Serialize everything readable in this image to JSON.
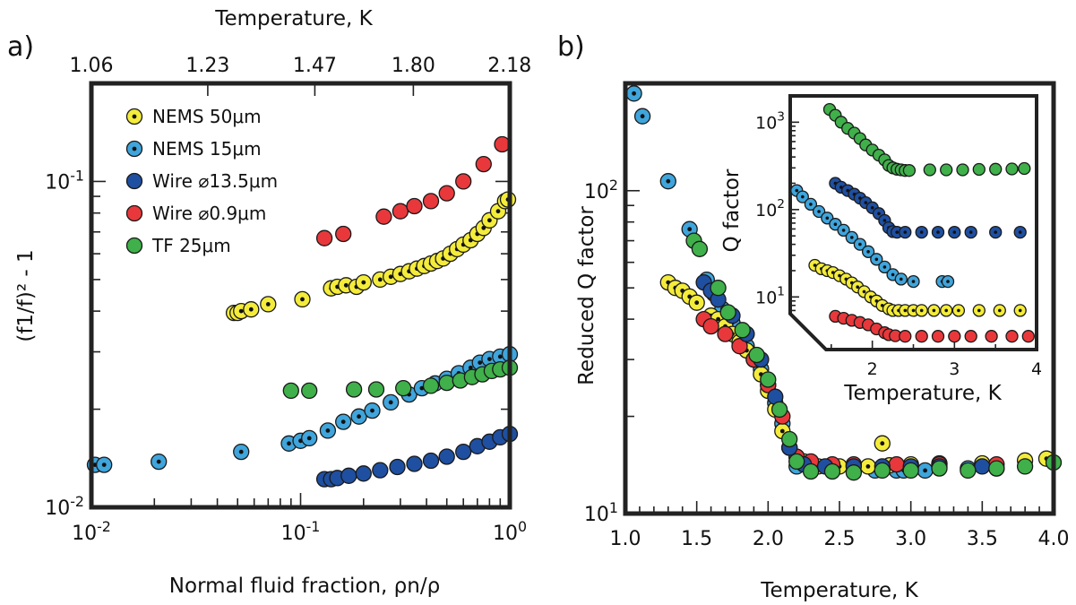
{
  "colors": {
    "nems50": "#f4ec3a",
    "nems15": "#3fa5dc",
    "wire13": "#1f4fa0",
    "wire09": "#e8383b",
    "tf25": "#3fb04a"
  },
  "chart_data": [
    {
      "type": "scatter",
      "panel_label": "a)",
      "xlabel": "Normal fluid fraction, ρn/ρ",
      "ylabel": "(f1/f)² - 1",
      "xscale": "log",
      "yscale": "log",
      "xlim": [
        0.01,
        1.0
      ],
      "ylim": [
        0.01,
        0.2
      ],
      "x_ticks": [
        {
          "v": 0.01,
          "base": "10",
          "exp": "-2"
        },
        {
          "v": 0.1,
          "base": "10",
          "exp": "-1"
        },
        {
          "v": 1,
          "base": "10",
          "exp": "0"
        }
      ],
      "y_ticks": [
        {
          "v": 0.01,
          "base": "10",
          "exp": "-2"
        },
        {
          "v": 0.1,
          "base": "10",
          "exp": "-1"
        }
      ],
      "top_axis": {
        "label": "Temperature, K",
        "ticks": [
          {
            "x": 0.01,
            "label": "1.06"
          },
          {
            "x": 0.036,
            "label": "1.23"
          },
          {
            "x": 0.117,
            "label": "1.47"
          },
          {
            "x": 0.346,
            "label": "1.80"
          },
          {
            "x": 0.997,
            "label": "2.18"
          }
        ]
      },
      "legend_position": "top-left",
      "series": [
        {
          "name": "NEMS 50μm",
          "color_key": "nems50",
          "dotted": true,
          "x": [
            0.048,
            0.05,
            0.052,
            0.058,
            0.07,
            0.102,
            0.14,
            0.15,
            0.165,
            0.185,
            0.2,
            0.24,
            0.27,
            0.3,
            0.33,
            0.36,
            0.39,
            0.42,
            0.45,
            0.48,
            0.52,
            0.56,
            0.6,
            0.65,
            0.7,
            0.75,
            0.8,
            0.88,
            0.95,
            0.98
          ],
          "y": [
            0.0395,
            0.0395,
            0.04,
            0.0405,
            0.042,
            0.0435,
            0.047,
            0.0475,
            0.048,
            0.0475,
            0.049,
            0.05,
            0.051,
            0.052,
            0.053,
            0.054,
            0.055,
            0.056,
            0.057,
            0.058,
            0.06,
            0.062,
            0.064,
            0.066,
            0.069,
            0.072,
            0.076,
            0.081,
            0.087,
            0.088
          ]
        },
        {
          "name": "NEMS 15μm",
          "color_key": "nems15",
          "dotted": true,
          "x": [
            0.0104,
            0.0115,
            0.021,
            0.052,
            0.088,
            0.1,
            0.11,
            0.135,
            0.16,
            0.19,
            0.22,
            0.27,
            0.33,
            0.38,
            0.44,
            0.5,
            0.57,
            0.65,
            0.72,
            0.8,
            0.9,
            1.0
          ],
          "y": [
            0.0135,
            0.0135,
            0.0138,
            0.0148,
            0.0157,
            0.016,
            0.0163,
            0.0172,
            0.0183,
            0.019,
            0.0198,
            0.021,
            0.0222,
            0.0232,
            0.024,
            0.0248,
            0.0258,
            0.0268,
            0.0278,
            0.0285,
            0.029,
            0.0295
          ]
        },
        {
          "name": "Wire ⌀13.5μm",
          "color_key": "wire13",
          "dotted": false,
          "x": [
            0.13,
            0.14,
            0.15,
            0.17,
            0.2,
            0.24,
            0.29,
            0.35,
            0.42,
            0.5,
            0.6,
            0.7,
            0.8,
            0.9,
            1.0
          ],
          "y": [
            0.0122,
            0.0122,
            0.0123,
            0.0125,
            0.0127,
            0.013,
            0.0133,
            0.0136,
            0.0139,
            0.0143,
            0.0148,
            0.0154,
            0.0159,
            0.0164,
            0.0168
          ]
        },
        {
          "name": "Wire ⌀0.9μm",
          "color_key": "wire09",
          "dotted": false,
          "x": [
            0.13,
            0.16,
            0.25,
            0.3,
            0.35,
            0.42,
            0.5,
            0.6,
            0.75,
            0.92
          ],
          "y": [
            0.067,
            0.069,
            0.078,
            0.081,
            0.084,
            0.087,
            0.092,
            0.1,
            0.113,
            0.13
          ]
        },
        {
          "name": "TF 25μm",
          "color_key": "tf25",
          "dotted": false,
          "x": [
            0.09,
            0.11,
            0.18,
            0.23,
            0.31,
            0.42,
            0.5,
            0.58,
            0.66,
            0.74,
            0.82,
            0.9,
            1.0
          ],
          "y": [
            0.0228,
            0.0228,
            0.023,
            0.023,
            0.0232,
            0.0236,
            0.0241,
            0.0245,
            0.0251,
            0.0256,
            0.0262,
            0.0265,
            0.0268
          ]
        }
      ]
    },
    {
      "type": "scatter",
      "panel_label": "b)",
      "xlabel": "Temperature, K",
      "ylabel": "Reduced Q factor",
      "xscale": "linear",
      "yscale": "log",
      "xlim": [
        1.0,
        4.0
      ],
      "ylim": [
        10,
        215
      ],
      "x_ticks": [
        {
          "v": 1.0,
          "label": "1.0"
        },
        {
          "v": 1.5,
          "label": "1.5"
        },
        {
          "v": 2.0,
          "label": "2.0"
        },
        {
          "v": 2.5,
          "label": "2.5"
        },
        {
          "v": 3.0,
          "label": "3.0"
        },
        {
          "v": 3.5,
          "label": "3.5"
        },
        {
          "v": 4.0,
          "label": "4.0"
        }
      ],
      "y_ticks": [
        {
          "v": 10,
          "base": "10",
          "exp": "1"
        },
        {
          "v": 100,
          "base": "10",
          "exp": "2"
        }
      ],
      "series": [
        {
          "series_key": "nems15",
          "color_key": "nems15",
          "dotted": true,
          "x": [
            1.06,
            1.12,
            1.3,
            1.45,
            1.57,
            1.62,
            1.68,
            1.75,
            1.8,
            1.85,
            1.9,
            1.95,
            2.0,
            2.05,
            2.1,
            2.15,
            2.2,
            2.3,
            2.45,
            2.6,
            2.75,
            2.9,
            2.95,
            3.1,
            3.4,
            3.6
          ],
          "y": [
            200,
            170,
            107,
            76,
            53,
            48,
            43,
            39,
            36,
            33,
            31,
            28,
            25,
            22,
            19,
            16,
            14,
            13.8,
            13.6,
            13.6,
            13.6,
            13.6,
            13.6,
            13.6,
            13.8,
            13.8
          ]
        },
        {
          "series_key": "nems50",
          "color_key": "nems50",
          "dotted": true,
          "x": [
            1.3,
            1.35,
            1.4,
            1.45,
            1.5,
            1.6,
            1.65,
            1.7,
            1.75,
            1.8,
            1.85,
            1.9,
            1.95,
            2.0,
            2.05,
            2.1,
            2.15,
            2.2,
            2.25,
            2.35,
            2.5,
            2.6,
            2.7,
            2.8,
            2.85,
            3.0,
            3.2,
            3.5,
            3.8,
            3.95
          ],
          "y": [
            52,
            50,
            49,
            47,
            45,
            41,
            40,
            38,
            36,
            34,
            32,
            30,
            27,
            24,
            21,
            18,
            16,
            15,
            14.5,
            14,
            14,
            14,
            14,
            16.5,
            14.1,
            14.2,
            14.3,
            14.3,
            14.6,
            14.8
          ]
        },
        {
          "series_key": "wire09",
          "color_key": "wire09",
          "dotted": false,
          "x": [
            1.55,
            1.6,
            1.7,
            1.8,
            1.9,
            2.0,
            2.1,
            2.2,
            2.3,
            2.45,
            2.6,
            2.9,
            3.2,
            3.6
          ],
          "y": [
            40,
            38,
            36,
            33,
            30,
            25,
            20,
            15,
            14.5,
            14.2,
            14.2,
            14.2,
            14.2,
            14.2
          ]
        },
        {
          "series_key": "wire13",
          "color_key": "wire13",
          "dotted": false,
          "x": [
            1.55,
            1.6,
            1.65,
            1.75,
            1.85,
            1.95,
            2.05,
            2.15,
            2.25,
            2.4,
            2.6,
            2.8,
            3.0,
            3.2,
            3.5
          ],
          "y": [
            52,
            49,
            46,
            41,
            36,
            30,
            23,
            16,
            14.2,
            14,
            14,
            14,
            14,
            14,
            14
          ]
        },
        {
          "series_key": "tf25",
          "color_key": "tf25",
          "dotted": false,
          "x": [
            1.48,
            1.52,
            1.65,
            1.72,
            1.82,
            1.92,
            2.0,
            2.08,
            2.15,
            2.2,
            2.3,
            2.45,
            2.6,
            2.8,
            3.0,
            3.2,
            3.4,
            3.6,
            3.8,
            4.0
          ],
          "y": [
            70,
            66,
            50,
            42,
            37,
            31,
            26,
            21,
            17,
            14.5,
            13.5,
            13.5,
            13.4,
            13.6,
            13.6,
            13.8,
            13.6,
            13.8,
            14,
            14.4
          ]
        }
      ],
      "inset": {
        "type": "scatter",
        "xlabel": "Temperature, K",
        "ylabel": "Q factor",
        "xscale": "linear",
        "yscale": "log",
        "xlim": [
          1.0,
          4.0
        ],
        "ylim": [
          2.5,
          2000
        ],
        "x_ticks": [
          {
            "v": 2,
            "label": "2"
          },
          {
            "v": 3,
            "label": "3"
          },
          {
            "v": 4,
            "label": "4"
          }
        ],
        "y_ticks": [
          {
            "v": 10,
            "base": "10",
            "exp": "1"
          },
          {
            "v": 100,
            "base": "10",
            "exp": "2"
          },
          {
            "v": 1000,
            "base": "10",
            "exp": "3"
          }
        ],
        "series": [
          {
            "series_key": "tf25",
            "color_key": "tf25",
            "dotted": false,
            "x": [
              1.48,
              1.55,
              1.62,
              1.7,
              1.78,
              1.85,
              1.92,
              2.0,
              2.08,
              2.15,
              2.2,
              2.25,
              2.3,
              2.35,
              2.4,
              2.45,
              2.7,
              2.9,
              3.1,
              3.3,
              3.5,
              3.7,
              3.85
            ],
            "y": [
              1400,
              1200,
              1000,
              850,
              750,
              650,
              550,
              480,
              420,
              370,
              320,
              300,
              290,
              285,
              280,
              280,
              285,
              285,
              285,
              288,
              290,
              292,
              295
            ]
          },
          {
            "series_key": "wire13",
            "color_key": "wire13",
            "dotted": true,
            "x": [
              1.55,
              1.62,
              1.7,
              1.78,
              1.85,
              1.92,
              2.0,
              2.08,
              2.15,
              2.2,
              2.25,
              2.3,
              2.4,
              2.6,
              2.8,
              3.0,
              3.2,
              3.5,
              3.8
            ],
            "y": [
              200,
              180,
              165,
              150,
              135,
              120,
              105,
              90,
              75,
              62,
              56,
              55,
              55,
              55,
              55,
              55,
              55,
              55,
              55
            ]
          },
          {
            "series_key": "nems15",
            "color_key": "nems15",
            "dotted": true,
            "x": [
              1.08,
              1.15,
              1.25,
              1.35,
              1.45,
              1.55,
              1.65,
              1.75,
              1.85,
              1.95,
              2.05,
              2.15,
              2.25,
              2.35,
              2.5,
              2.85,
              2.92
            ],
            "y": [
              165,
              140,
              115,
              95,
              80,
              68,
              58,
              48,
              40,
              33,
              27,
              22,
              18,
              16,
              15,
              15,
              15
            ]
          },
          {
            "series_key": "nems50",
            "color_key": "nems50",
            "dotted": true,
            "x": [
              1.3,
              1.38,
              1.45,
              1.52,
              1.6,
              1.68,
              1.75,
              1.82,
              1.9,
              1.98,
              2.05,
              2.12,
              2.2,
              2.25,
              2.32,
              2.4,
              2.5,
              2.6,
              2.75,
              2.9,
              3.05,
              3.3,
              3.55,
              3.8
            ],
            "y": [
              23,
              21,
              20,
              19,
              17.5,
              16,
              14.5,
              13,
              11.5,
              10,
              9,
              8,
              7.3,
              7,
              7,
              7,
              7,
              7,
              7,
              7,
              7,
              7,
              7,
              7
            ]
          },
          {
            "series_key": "wire09",
            "color_key": "wire09",
            "dotted": false,
            "x": [
              1.55,
              1.65,
              1.75,
              1.85,
              1.95,
              2.05,
              2.15,
              2.2,
              2.28,
              2.4,
              2.6,
              2.8,
              3.0,
              3.2,
              3.45,
              3.7,
              3.9
            ],
            "y": [
              6,
              5.7,
              5.4,
              5.1,
              4.8,
              4.3,
              3.9,
              3.7,
              3.6,
              3.55,
              3.55,
              3.55,
              3.55,
              3.55,
              3.55,
              3.55,
              3.55
            ]
          }
        ]
      }
    }
  ]
}
